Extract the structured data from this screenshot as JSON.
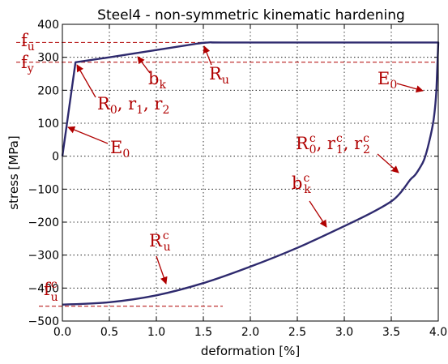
{
  "chart_data": {
    "type": "line",
    "title": "Steel4 - non-symmetric kinematic hardening",
    "xlabel": "deformation [%]",
    "ylabel": "stress [MPa]",
    "xlim": [
      0.0,
      4.0
    ],
    "ylim": [
      -500,
      400
    ],
    "x_ticks": [
      "0.0",
      "0.5",
      "1.0",
      "1.5",
      "2.0",
      "2.5",
      "3.0",
      "3.5",
      "4.0"
    ],
    "y_ticks": [
      "400",
      "300",
      "200",
      "100",
      "0",
      "−100",
      "−200",
      "−300",
      "−400",
      "−500"
    ],
    "grid": true,
    "line_color": "#2e2a6e",
    "annotation_color": "#b00000",
    "series": [
      {
        "x": [
          0.0,
          0.14,
          0.5,
          1.0,
          1.4,
          1.55,
          1.7,
          2.5,
          3.5,
          4.0,
          3.98,
          3.95,
          3.9,
          3.85,
          3.8,
          3.75,
          3.7,
          3.6,
          3.5,
          3.3,
          3.0,
          2.5,
          2.0,
          1.5,
          1.0,
          0.5,
          0.0
        ],
        "y": [
          0,
          285,
          300,
          322,
          340,
          345,
          345,
          345,
          345,
          345,
          200,
          110,
          40,
          -10,
          -37,
          -58,
          -72,
          -110,
          -137,
          -170,
          -212,
          -278,
          -335,
          -385,
          -422,
          -443,
          -450
        ]
      }
    ],
    "reference_lines": [
      {
        "label": "f",
        "sub": "u",
        "sup": "",
        "y": 345
      },
      {
        "label": "f",
        "sub": "y",
        "sup": "",
        "y": 285
      },
      {
        "label": "f",
        "sub": "u",
        "sup": "c",
        "y": -455
      }
    ],
    "annotations": [
      {
        "text": "b",
        "sub": "k",
        "sup": ""
      },
      {
        "text": "R",
        "sub": "u",
        "sup": ""
      },
      {
        "text": "R",
        "sub": "0",
        "sup": "",
        "rest": ", r",
        "rest_sub": "1",
        "rest2": ", r",
        "rest2_sub": "2"
      },
      {
        "text": "E",
        "sub": "0",
        "sup": ""
      },
      {
        "text": "E",
        "sub": "0",
        "sup": ""
      },
      {
        "text": "R",
        "sub": "0",
        "sup": "c",
        "rest": ", r",
        "rest_sub": "1",
        "rest_sup": "c",
        "rest2": ", r",
        "rest2_sub": "2",
        "rest2_sup": "c"
      },
      {
        "text": "b",
        "sub": "k",
        "sup": "c"
      },
      {
        "text": "R",
        "sub": "u",
        "sup": "c"
      }
    ]
  }
}
